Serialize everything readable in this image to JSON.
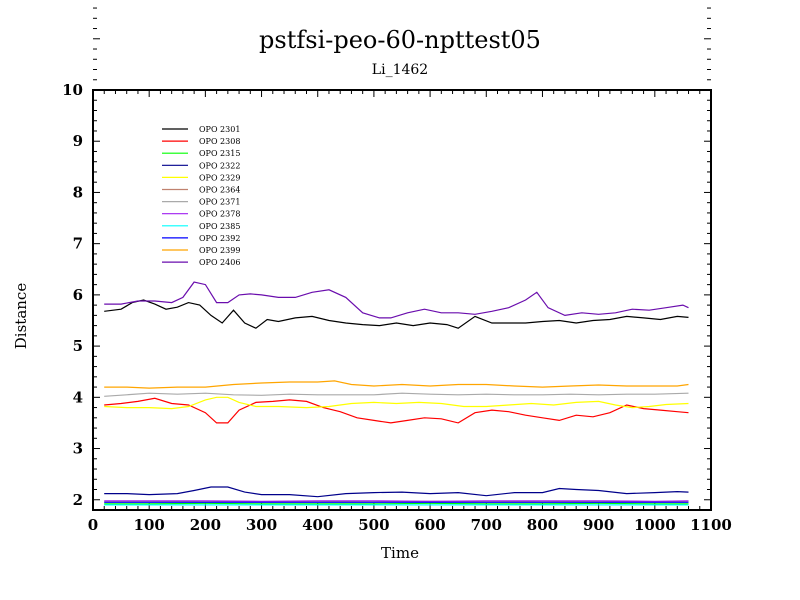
{
  "chart_data": {
    "type": "line",
    "title": "pstfsi-peo-60-npttest05",
    "subtitle": "Li_1462",
    "xlabel": "Time",
    "ylabel": "Distance",
    "xlim": [
      0,
      1100
    ],
    "ylim": [
      1.8,
      10
    ],
    "xticks": [
      0,
      100,
      200,
      300,
      400,
      500,
      600,
      700,
      800,
      900,
      1000,
      1100
    ],
    "yticks": [
      2,
      3,
      4,
      5,
      6,
      7,
      8,
      9,
      10
    ],
    "legend_position": "top-left",
    "grid": false,
    "series": [
      {
        "name": "OPO 2301",
        "color": "#000000",
        "x": [
          20,
          50,
          70,
          90,
          110,
          130,
          150,
          170,
          190,
          210,
          230,
          250,
          270,
          290,
          310,
          330,
          360,
          390,
          420,
          450,
          480,
          510,
          540,
          570,
          600,
          630,
          650,
          680,
          710,
          740,
          770,
          800,
          830,
          860,
          890,
          920,
          950,
          980,
          1010,
          1040,
          1060
        ],
        "y": [
          5.68,
          5.72,
          5.85,
          5.9,
          5.82,
          5.72,
          5.76,
          5.85,
          5.8,
          5.6,
          5.45,
          5.7,
          5.45,
          5.35,
          5.52,
          5.48,
          5.55,
          5.58,
          5.5,
          5.45,
          5.42,
          5.4,
          5.45,
          5.4,
          5.45,
          5.42,
          5.35,
          5.58,
          5.45,
          5.45,
          5.45,
          5.48,
          5.5,
          5.45,
          5.5,
          5.52,
          5.58,
          5.55,
          5.52,
          5.58,
          5.56
        ]
      },
      {
        "name": "OPO 2308",
        "color": "#ff0000",
        "x": [
          20,
          50,
          80,
          110,
          140,
          170,
          200,
          220,
          240,
          260,
          290,
          320,
          350,
          380,
          410,
          440,
          470,
          500,
          530,
          560,
          590,
          620,
          650,
          680,
          710,
          740,
          770,
          800,
          830,
          860,
          890,
          920,
          950,
          980,
          1010,
          1040,
          1060
        ],
        "y": [
          3.85,
          3.88,
          3.92,
          3.98,
          3.88,
          3.85,
          3.7,
          3.5,
          3.5,
          3.75,
          3.9,
          3.92,
          3.95,
          3.92,
          3.8,
          3.72,
          3.6,
          3.55,
          3.5,
          3.55,
          3.6,
          3.58,
          3.5,
          3.7,
          3.75,
          3.72,
          3.65,
          3.6,
          3.55,
          3.65,
          3.62,
          3.7,
          3.85,
          3.78,
          3.75,
          3.72,
          3.7
        ]
      },
      {
        "name": "OPO 2315",
        "color": "#00ff00",
        "x": [
          20,
          100,
          200,
          300,
          400,
          500,
          600,
          700,
          800,
          900,
          1000,
          1060
        ],
        "y": [
          1.92,
          1.92,
          1.93,
          1.92,
          1.92,
          1.92,
          1.93,
          1.92,
          1.92,
          1.93,
          1.92,
          1.92
        ]
      },
      {
        "name": "OPO 2322",
        "color": "#00008b",
        "x": [
          20,
          60,
          100,
          150,
          180,
          210,
          240,
          270,
          300,
          350,
          400,
          450,
          500,
          550,
          600,
          650,
          700,
          750,
          800,
          830,
          860,
          900,
          950,
          1000,
          1040,
          1060
        ],
        "y": [
          2.12,
          2.12,
          2.1,
          2.12,
          2.18,
          2.25,
          2.25,
          2.15,
          2.1,
          2.1,
          2.06,
          2.12,
          2.14,
          2.15,
          2.12,
          2.14,
          2.08,
          2.14,
          2.14,
          2.22,
          2.2,
          2.18,
          2.12,
          2.14,
          2.16,
          2.15
        ]
      },
      {
        "name": "OPO 2329",
        "color": "#ffff00",
        "x": [
          20,
          60,
          100,
          140,
          170,
          200,
          220,
          240,
          260,
          290,
          330,
          380,
          420,
          460,
          500,
          540,
          580,
          620,
          660,
          700,
          740,
          780,
          820,
          860,
          900,
          930,
          960,
          990,
          1020,
          1060
        ],
        "y": [
          3.82,
          3.8,
          3.8,
          3.78,
          3.82,
          3.95,
          4.0,
          4.0,
          3.9,
          3.82,
          3.82,
          3.8,
          3.82,
          3.88,
          3.9,
          3.88,
          3.9,
          3.88,
          3.82,
          3.82,
          3.85,
          3.88,
          3.85,
          3.9,
          3.92,
          3.85,
          3.8,
          3.82,
          3.86,
          3.88
        ]
      },
      {
        "name": "OPO 2364",
        "color": "#c0826f",
        "x": [
          20,
          100,
          200,
          300,
          400,
          500,
          600,
          700,
          800,
          900,
          1000,
          1060
        ],
        "y": [
          1.96,
          1.96,
          1.97,
          1.96,
          1.97,
          1.96,
          1.97,
          1.96,
          1.97,
          1.96,
          1.96,
          1.96
        ]
      },
      {
        "name": "OPO 2371",
        "color": "#aaaaaa",
        "x": [
          20,
          60,
          100,
          150,
          200,
          250,
          300,
          350,
          400,
          450,
          500,
          550,
          600,
          650,
          700,
          750,
          800,
          850,
          900,
          950,
          1000,
          1060
        ],
        "y": [
          4.02,
          4.05,
          4.08,
          4.06,
          4.08,
          4.05,
          4.04,
          4.06,
          4.05,
          4.05,
          4.05,
          4.08,
          4.06,
          4.05,
          4.06,
          4.05,
          4.05,
          4.06,
          4.05,
          4.06,
          4.06,
          4.08
        ]
      },
      {
        "name": "OPO 2378",
        "color": "#a020f0",
        "x": [
          20,
          100,
          200,
          300,
          400,
          500,
          600,
          700,
          800,
          900,
          1000,
          1060
        ],
        "y": [
          1.98,
          1.98,
          1.98,
          1.97,
          1.98,
          1.98,
          1.97,
          1.98,
          1.98,
          1.98,
          1.97,
          1.98
        ]
      },
      {
        "name": "OPO 2385",
        "color": "#00ffff",
        "x": [
          20,
          100,
          200,
          300,
          400,
          500,
          600,
          700,
          800,
          900,
          1000,
          1060
        ],
        "y": [
          1.9,
          1.9,
          1.9,
          1.9,
          1.9,
          1.9,
          1.9,
          1.9,
          1.9,
          1.9,
          1.9,
          1.9
        ]
      },
      {
        "name": "OPO 2392",
        "color": "#0000ff",
        "x": [
          20,
          100,
          200,
          300,
          400,
          500,
          600,
          700,
          800,
          900,
          1000,
          1060
        ],
        "y": [
          1.95,
          1.95,
          1.95,
          1.95,
          1.95,
          1.95,
          1.95,
          1.95,
          1.95,
          1.95,
          1.95,
          1.95
        ]
      },
      {
        "name": "OPO 2399",
        "color": "#ffa500",
        "x": [
          20,
          60,
          100,
          150,
          200,
          250,
          300,
          350,
          400,
          430,
          460,
          500,
          550,
          600,
          650,
          700,
          750,
          800,
          850,
          900,
          950,
          1000,
          1040,
          1060
        ],
        "y": [
          4.2,
          4.2,
          4.18,
          4.2,
          4.2,
          4.25,
          4.28,
          4.3,
          4.3,
          4.32,
          4.25,
          4.22,
          4.25,
          4.22,
          4.25,
          4.25,
          4.22,
          4.2,
          4.22,
          4.24,
          4.22,
          4.22,
          4.22,
          4.25
        ]
      },
      {
        "name": "OPO 2406",
        "color": "#6a0dad",
        "x": [
          20,
          50,
          80,
          110,
          140,
          160,
          180,
          200,
          220,
          240,
          260,
          280,
          300,
          330,
          360,
          390,
          420,
          450,
          480,
          510,
          530,
          560,
          590,
          620,
          650,
          680,
          710,
          740,
          770,
          790,
          810,
          840,
          870,
          900,
          930,
          960,
          990,
          1020,
          1050,
          1060
        ],
        "y": [
          5.82,
          5.82,
          5.88,
          5.88,
          5.85,
          5.95,
          6.25,
          6.2,
          5.85,
          5.85,
          6.0,
          6.02,
          6.0,
          5.95,
          5.95,
          6.05,
          6.1,
          5.95,
          5.65,
          5.55,
          5.55,
          5.65,
          5.72,
          5.65,
          5.65,
          5.62,
          5.68,
          5.75,
          5.9,
          6.05,
          5.75,
          5.6,
          5.65,
          5.62,
          5.65,
          5.72,
          5.7,
          5.75,
          5.8,
          5.75
        ]
      }
    ]
  }
}
